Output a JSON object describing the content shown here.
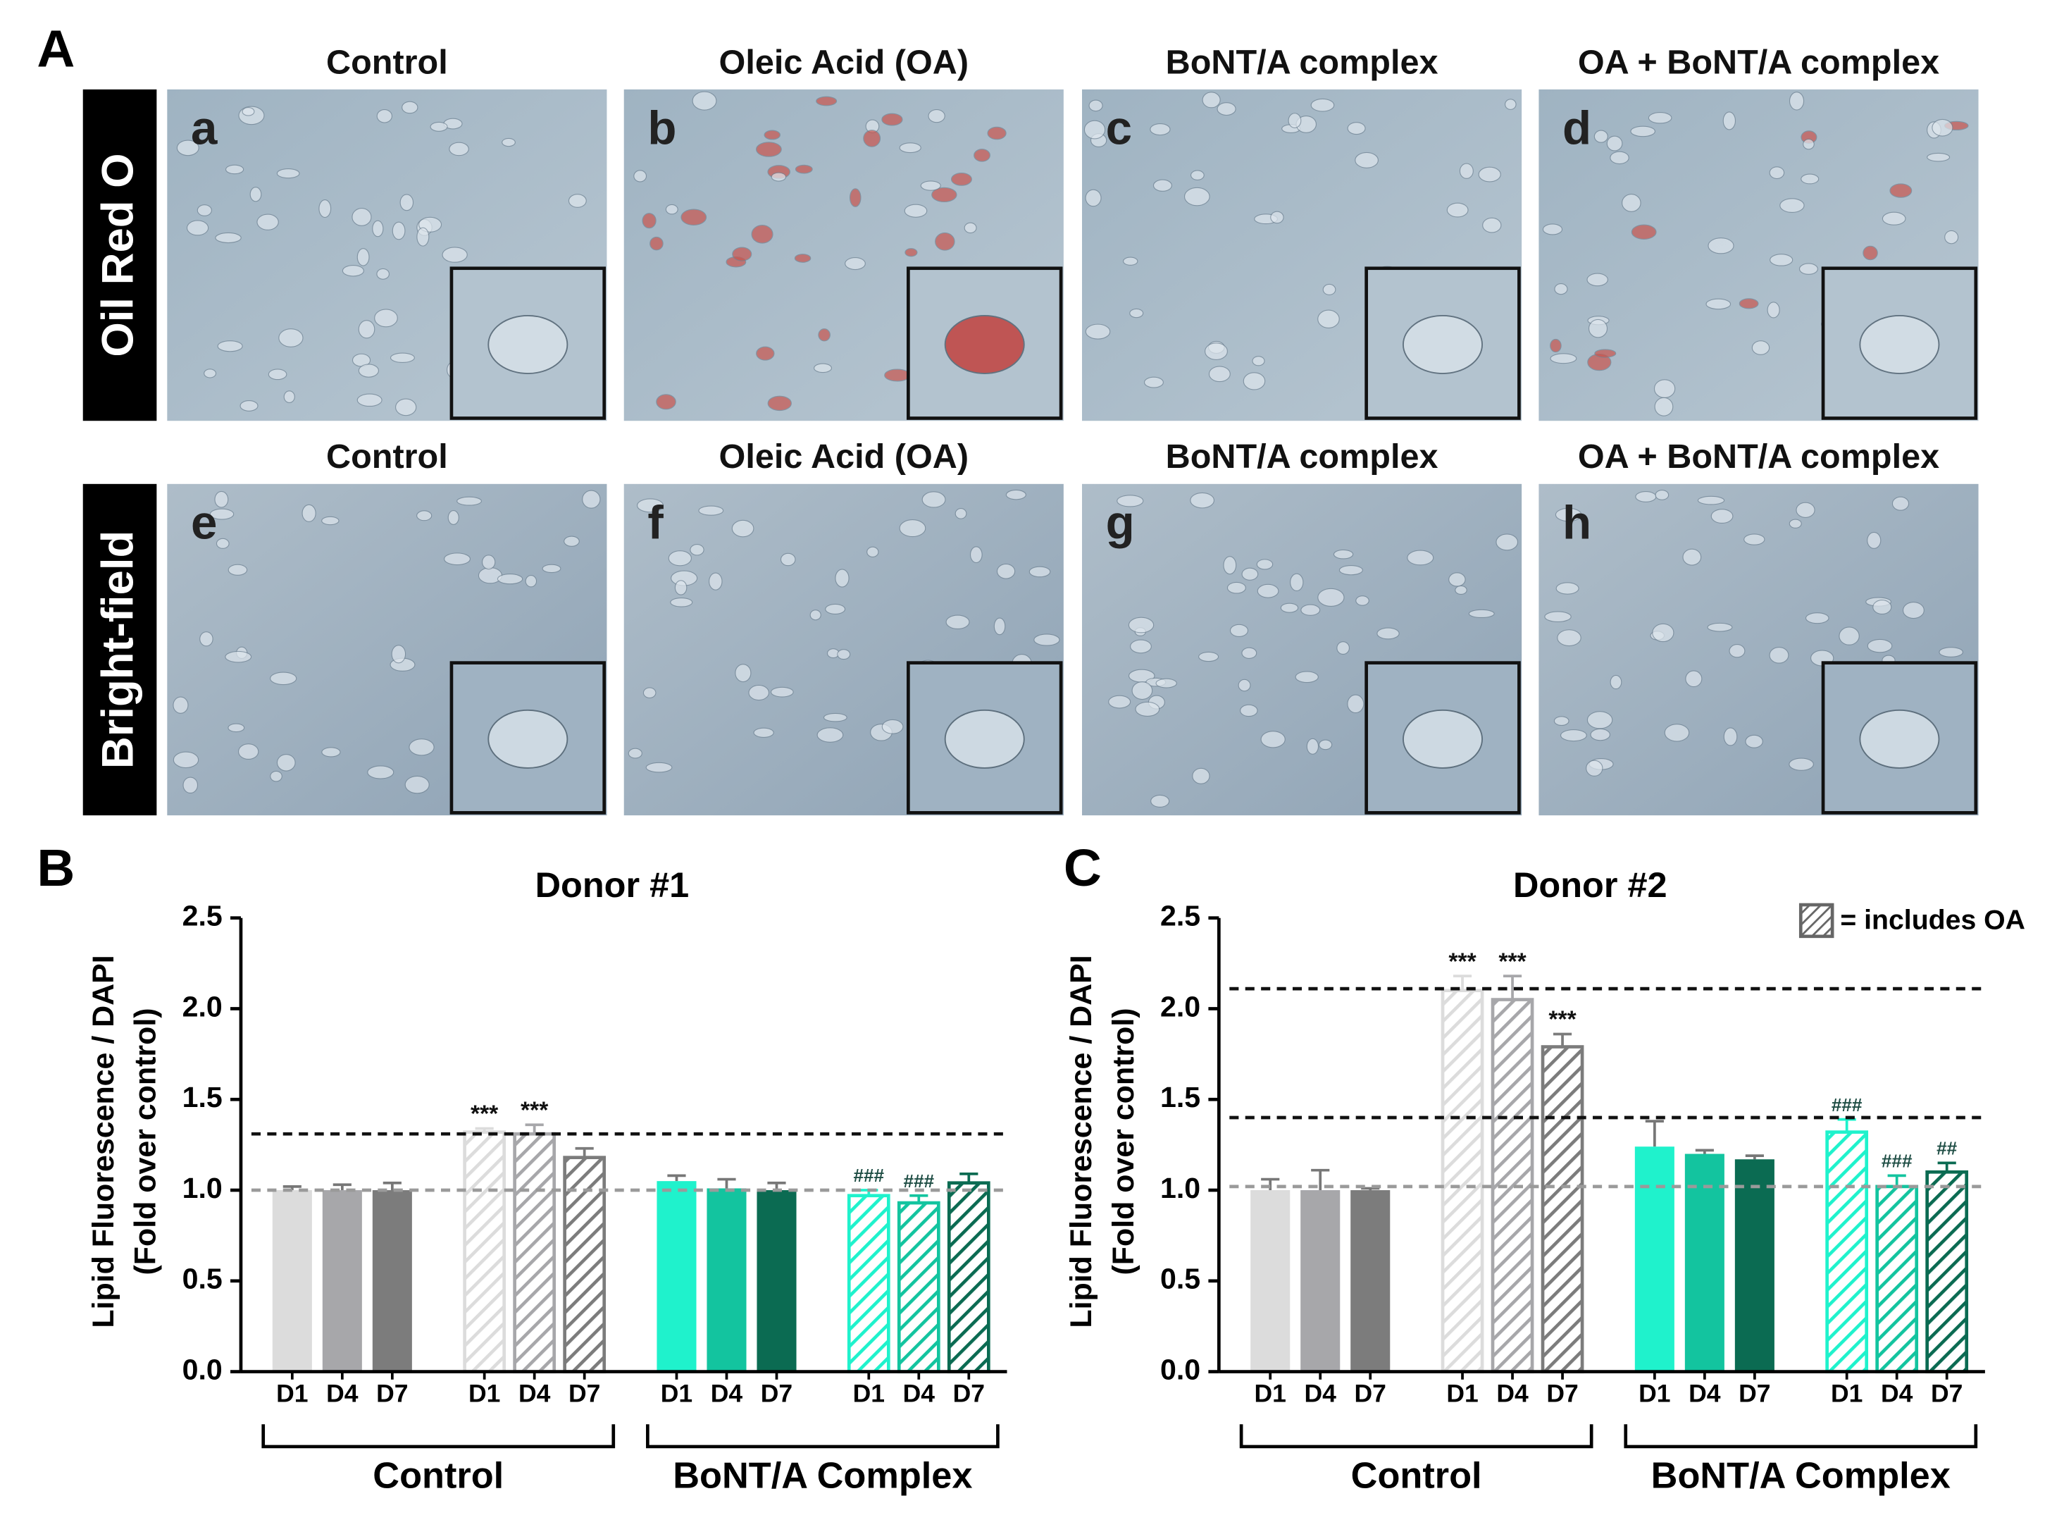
{
  "panel_labels": [
    "A",
    "B",
    "C"
  ],
  "images": {
    "row_labels": [
      "Oil Red O",
      "Bright-field"
    ],
    "titles_row1": [
      "Control",
      "Oleic Acid (OA)",
      "BoNT/A complex",
      "OA + BoNT/A complex"
    ],
    "titles_row2": [
      "Control",
      "Oleic Acid (OA)",
      "BoNT/A complex",
      "OA + BoNT/A complex"
    ],
    "letters": [
      "a",
      "b",
      "c",
      "d",
      "e",
      "f",
      "g",
      "h"
    ]
  },
  "chart_data": [
    {
      "type": "bar",
      "title": "Donor #1",
      "y_label": [
        "Lipid Fluorescence / DAPI",
        "(Fold over control)"
      ],
      "categories": [
        "D1",
        "D4",
        "D7",
        "D1",
        "D4",
        "D7",
        "D1",
        "D4",
        "D7",
        "D1",
        "D4",
        "D7"
      ],
      "groups": [
        "Control",
        "BoNT/A Complex"
      ],
      "values": [
        1.0,
        1.0,
        1.0,
        1.32,
        1.31,
        1.18,
        1.05,
        1.01,
        1.0,
        0.97,
        0.93,
        1.04
      ],
      "errors": [
        0.02,
        0.03,
        0.04,
        0.02,
        0.05,
        0.05,
        0.03,
        0.05,
        0.04,
        0.03,
        0.04,
        0.05
      ],
      "colors": [
        "#dcdcdc",
        "#a7a7aa",
        "#7c7c7c",
        "#dcdcdc",
        "#a7a7aa",
        "#7c7c7c",
        "#1ff2cc",
        "#13c49f",
        "#0b6b52",
        "#1ff2cc",
        "#13c49f",
        "#0b6b52"
      ],
      "hatched": [
        false,
        false,
        false,
        true,
        true,
        true,
        false,
        false,
        false,
        true,
        true,
        true
      ],
      "annotations": [
        null,
        null,
        null,
        "***",
        "***",
        null,
        null,
        null,
        null,
        "###",
        "###",
        null
      ],
      "reference_lines": [
        {
          "value": 1.0,
          "color": "#9a9a9a"
        },
        {
          "value": 1.31,
          "color": "#111111"
        }
      ],
      "ylim": [
        0,
        2.5
      ],
      "yticks": [
        {
          "value": 0,
          "label": "0.0"
        },
        0.5,
        {
          "value": 1,
          "label": "1.0"
        },
        1.5,
        {
          "value": 2,
          "label": "2.0"
        },
        2.5
      ]
    },
    {
      "type": "bar",
      "title": "Donor #2",
      "y_label": [
        "Lipid Fluorescence / DAPI",
        "(Fold over control)"
      ],
      "categories": [
        "D1",
        "D4",
        "D7",
        "D1",
        "D4",
        "D7",
        "D1",
        "D4",
        "D7",
        "D1",
        "D4",
        "D7"
      ],
      "groups": [
        "Control",
        "BoNT/A Complex"
      ],
      "values": [
        1.0,
        1.0,
        1.0,
        2.1,
        2.05,
        1.79,
        1.24,
        1.2,
        1.17,
        1.32,
        1.02,
        1.1
      ],
      "errors": [
        0.06,
        0.11,
        0.01,
        0.08,
        0.13,
        0.07,
        0.14,
        0.02,
        0.02,
        0.07,
        0.06,
        0.05
      ],
      "colors": [
        "#dcdcdc",
        "#a7a7aa",
        "#7c7c7c",
        "#dcdcdc",
        "#a7a7aa",
        "#7c7c7c",
        "#1ff2cc",
        "#13c49f",
        "#0b6b52",
        "#1ff2cc",
        "#13c49f",
        "#0b6b52"
      ],
      "hatched": [
        false,
        false,
        false,
        true,
        true,
        true,
        false,
        false,
        false,
        true,
        true,
        true
      ],
      "annotations": [
        null,
        null,
        null,
        "***",
        "***",
        "***",
        null,
        null,
        null,
        "###",
        "###",
        "##"
      ],
      "reference_lines": [
        {
          "value": 1.02,
          "color": "#9a9a9a"
        },
        {
          "value": 1.4,
          "color": "#111111"
        },
        {
          "value": 2.11,
          "color": "#111111"
        }
      ],
      "legend": "= includes OA",
      "ylim": [
        0,
        2.5
      ],
      "yticks": [
        {
          "value": 0,
          "label": "0.0"
        },
        0.5,
        {
          "value": 1,
          "label": "1.0"
        },
        1.5,
        {
          "value": 2,
          "label": "2.0"
        },
        2.5
      ]
    }
  ]
}
